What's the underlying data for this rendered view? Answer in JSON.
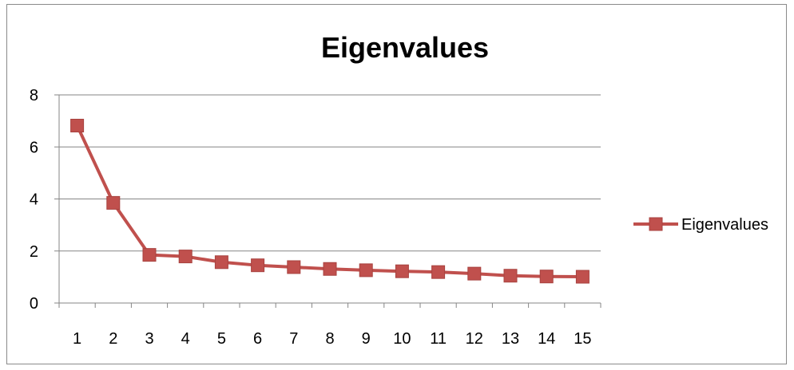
{
  "chart_data": {
    "type": "line",
    "title": "Eigenvalues",
    "xlabel": "",
    "ylabel": "",
    "categories": [
      "1",
      "2",
      "3",
      "4",
      "5",
      "6",
      "7",
      "8",
      "9",
      "10",
      "11",
      "12",
      "13",
      "14",
      "15"
    ],
    "series": [
      {
        "name": "Eigenvalues",
        "values": [
          6.82,
          3.85,
          1.85,
          1.79,
          1.57,
          1.45,
          1.38,
          1.31,
          1.26,
          1.22,
          1.19,
          1.13,
          1.05,
          1.02,
          1.01
        ],
        "color": "#c0504d"
      }
    ],
    "ylim": [
      0,
      8
    ],
    "yticks": [
      "0",
      "2",
      "4",
      "6",
      "8"
    ],
    "grid": true,
    "legend_position": "right",
    "marker": "square"
  }
}
